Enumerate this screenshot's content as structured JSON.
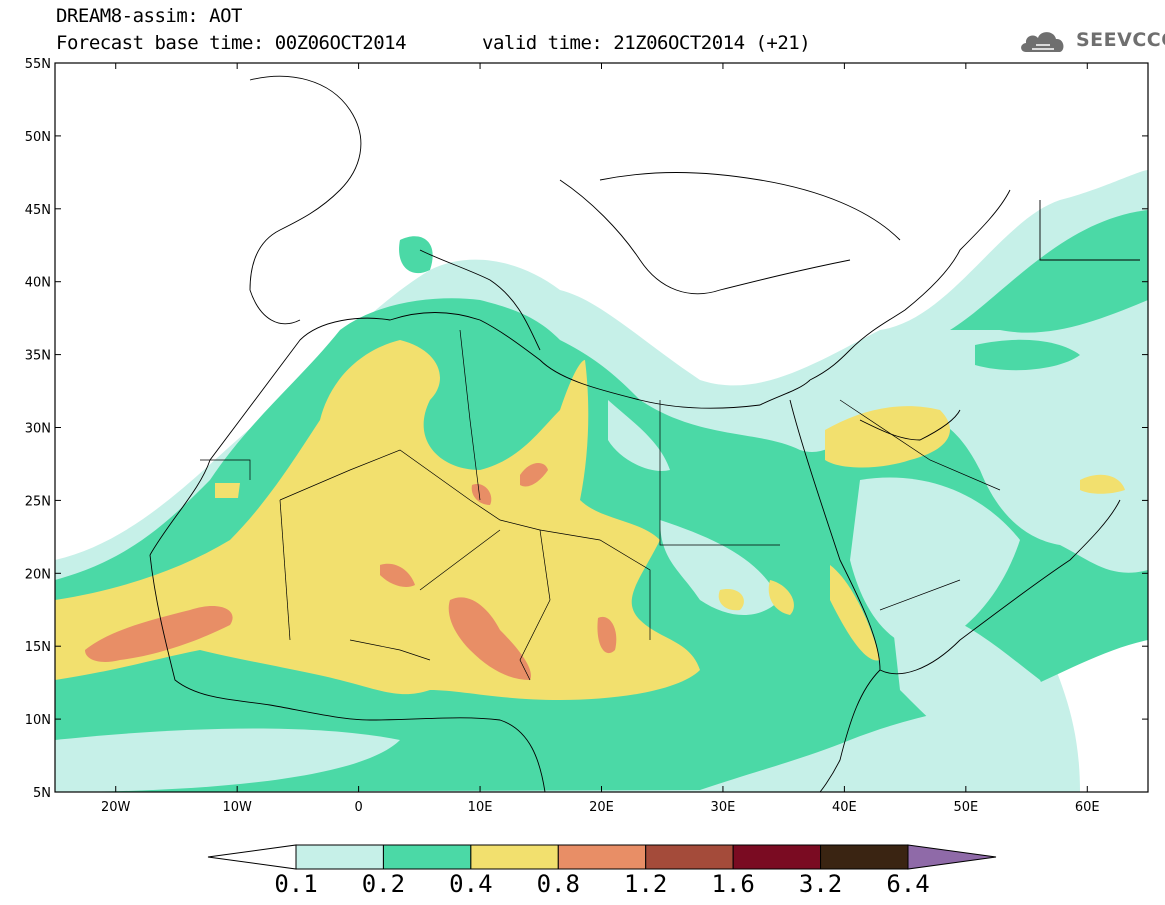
{
  "header": {
    "line1": "DREAM8-assim: AOT",
    "base_time": "Forecast base time: 00Z06OCT2014",
    "valid_time": "valid time: 21Z06OCT2014 (+21)"
  },
  "logo": {
    "text": "SEEVCCC",
    "icon": "cloud-icon"
  },
  "map": {
    "lat_labels": [
      "55N",
      "50N",
      "45N",
      "40N",
      "35N",
      "30N",
      "25N",
      "20N",
      "15N",
      "10N",
      "5N"
    ],
    "lon_labels": [
      "20W",
      "10W",
      "0",
      "10E",
      "20E",
      "30E",
      "40E",
      "50E",
      "60E"
    ],
    "lat_range": [
      5,
      55
    ],
    "lon_range": [
      -25,
      65
    ]
  },
  "colorbar": {
    "labels": [
      "0.1",
      "0.2",
      "0.4",
      "0.8",
      "1.2",
      "1.6",
      "3.2",
      "6.4"
    ],
    "colors": [
      "#ffffff",
      "#c6f0e8",
      "#4bd9a6",
      "#f2e06e",
      "#e88e66",
      "#a44b3a",
      "#7a0b22",
      "#3a2412",
      "#8f6aa8"
    ]
  },
  "colors": {
    "c1": "#c6f0e8",
    "c2": "#4bd9a6",
    "c3": "#f2e06e",
    "c4": "#e88e66"
  }
}
